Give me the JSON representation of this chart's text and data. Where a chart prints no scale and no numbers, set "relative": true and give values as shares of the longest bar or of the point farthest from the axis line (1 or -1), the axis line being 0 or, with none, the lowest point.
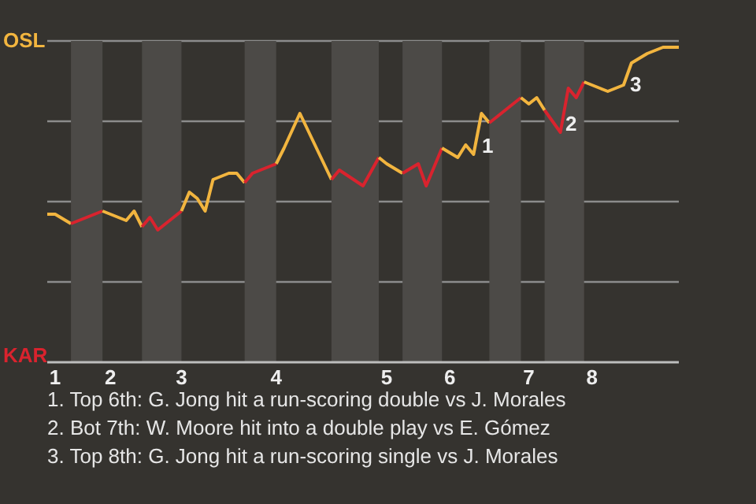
{
  "chart_data": {
    "type": "line",
    "relative": true,
    "grid": "y",
    "categories": [
      null,
      "1",
      null,
      null,
      null,
      null,
      null,
      null,
      "2",
      null,
      null,
      null,
      null,
      null,
      null,
      null,
      null,
      "3",
      null,
      null,
      null,
      null,
      null,
      null,
      null,
      null,
      null,
      null,
      null,
      "4",
      null,
      null,
      null,
      null,
      null,
      null,
      null,
      null,
      null,
      null,
      null,
      null,
      null,
      "5",
      null,
      null,
      null,
      null,
      null,
      null,
      null,
      "6",
      null,
      null,
      null,
      null,
      null,
      null,
      null,
      null,
      null,
      "7",
      null,
      null,
      null,
      null,
      null,
      null,
      null,
      "8",
      null,
      null,
      null,
      null,
      null,
      null,
      null,
      null,
      null,
      null,
      null
    ],
    "series": [
      {
        "color": "#f2b53f",
        "values": [
          0.47,
          0.47,
          null,
          0.44,
          null,
          null,
          null,
          null,
          null,
          null,
          null,
          null,
          null,
          null,
          null,
          null,
          null,
          null,
          null,
          null,
          null,
          null,
          null,
          null,
          null,
          null,
          null,
          null,
          null,
          null,
          null,
          null,
          null,
          null,
          null,
          null,
          null,
          null,
          null,
          null,
          null,
          null,
          null,
          null,
          null,
          null,
          null,
          null,
          null,
          null,
          null,
          null,
          null,
          null,
          null,
          null,
          null,
          null,
          null,
          null,
          null,
          null,
          null,
          null,
          null,
          null,
          null,
          null,
          null,
          null,
          null,
          null,
          null,
          null,
          null,
          null,
          null,
          null,
          null,
          null,
          null
        ]
      },
      {
        "color": "#d9232e",
        "values": [
          null,
          null,
          null,
          0.44,
          null,
          null,
          0.47,
          0.48,
          null,
          null,
          null,
          null,
          null,
          null,
          null,
          null,
          null,
          null,
          null,
          null,
          null,
          null,
          null,
          null,
          null,
          null,
          null,
          null,
          null,
          null,
          null,
          null,
          null,
          null,
          null,
          null,
          null,
          null,
          null,
          null,
          null,
          null,
          null,
          null,
          null,
          null,
          null,
          null,
          null,
          null,
          null,
          null,
          null,
          null,
          null,
          null,
          null,
          null,
          null,
          null,
          null,
          null,
          null,
          null,
          null,
          null,
          null,
          null,
          null,
          null,
          null,
          null,
          null,
          null,
          null,
          null,
          null,
          null,
          null,
          null,
          null
        ]
      },
      {
        "color": "#f2b53f",
        "values": [
          null,
          null,
          null,
          null,
          null,
          null,
          null,
          0.48,
          0.47,
          null,
          0.45,
          0.48,
          0.43,
          null,
          null,
          null,
          null,
          null,
          null,
          null,
          null,
          null,
          null,
          null,
          null,
          null,
          null,
          null,
          null,
          null,
          null,
          null,
          null,
          null,
          null,
          null,
          null,
          null,
          null,
          null,
          null,
          null,
          null,
          null,
          null,
          null,
          null,
          null,
          null,
          null,
          null,
          null,
          null,
          null,
          null,
          null,
          null,
          null,
          null,
          null,
          null,
          null,
          null,
          null,
          null,
          null,
          null,
          null,
          null,
          null,
          null,
          null,
          null,
          null,
          null,
          null,
          null,
          null,
          null,
          null,
          null
        ]
      },
      {
        "color": "#d9232e",
        "values": [
          null,
          null,
          null,
          null,
          null,
          null,
          null,
          null,
          null,
          null,
          null,
          null,
          0.43,
          0.46,
          0.42,
          null,
          null,
          0.48,
          null,
          null,
          null,
          null,
          null,
          null,
          null,
          null,
          null,
          null,
          null,
          null,
          null,
          null,
          null,
          null,
          null,
          null,
          null,
          null,
          null,
          null,
          null,
          null,
          null,
          null,
          null,
          null,
          null,
          null,
          null,
          null,
          null,
          null,
          null,
          null,
          null,
          null,
          null,
          null,
          null,
          null,
          null,
          null,
          null,
          null,
          null,
          null,
          null,
          null,
          null,
          null,
          null,
          null,
          null,
          null,
          null,
          null,
          null,
          null,
          null,
          null,
          null
        ]
      },
      {
        "color": "#f2b53f",
        "values": [
          null,
          null,
          null,
          null,
          null,
          null,
          null,
          null,
          null,
          null,
          null,
          null,
          null,
          null,
          null,
          null,
          null,
          0.48,
          0.54,
          0.52,
          0.48,
          0.58,
          null,
          0.6,
          0.6,
          0.57,
          null,
          null,
          null,
          null,
          null,
          null,
          null,
          null,
          null,
          null,
          null,
          null,
          null,
          null,
          null,
          null,
          null,
          null,
          null,
          null,
          null,
          null,
          null,
          null,
          null,
          null,
          null,
          null,
          null,
          null,
          null,
          null,
          null,
          null,
          null,
          null,
          null,
          null,
          null,
          null,
          null,
          null,
          null,
          null,
          null,
          null,
          null,
          null,
          null,
          null,
          null,
          null,
          null,
          null,
          null
        ]
      },
      {
        "color": "#d9232e",
        "values": [
          null,
          null,
          null,
          null,
          null,
          null,
          null,
          null,
          null,
          null,
          null,
          null,
          null,
          null,
          null,
          null,
          null,
          null,
          null,
          null,
          null,
          null,
          null,
          null,
          null,
          0.57,
          0.6,
          null,
          null,
          0.63,
          null,
          null,
          null,
          null,
          null,
          null,
          null,
          null,
          null,
          null,
          null,
          null,
          null,
          null,
          null,
          null,
          null,
          null,
          null,
          null,
          null,
          null,
          null,
          null,
          null,
          null,
          null,
          null,
          null,
          null,
          null,
          null,
          null,
          null,
          null,
          null,
          null,
          null,
          null,
          null,
          null,
          null,
          null,
          null,
          null,
          null,
          null,
          null,
          null,
          null,
          null
        ]
      },
      {
        "color": "#f2b53f",
        "values": [
          null,
          null,
          null,
          null,
          null,
          null,
          null,
          null,
          null,
          null,
          null,
          null,
          null,
          null,
          null,
          null,
          null,
          null,
          null,
          null,
          null,
          null,
          null,
          null,
          null,
          null,
          null,
          null,
          null,
          0.63,
          0.68,
          null,
          0.79,
          null,
          null,
          null,
          0.58,
          null,
          null,
          null,
          null,
          null,
          null,
          null,
          null,
          null,
          null,
          null,
          null,
          null,
          null,
          null,
          null,
          null,
          null,
          null,
          null,
          null,
          null,
          null,
          null,
          null,
          null,
          null,
          null,
          null,
          null,
          null,
          null,
          null,
          null,
          null,
          null,
          null,
          null,
          null,
          null,
          null,
          null,
          null,
          null
        ]
      },
      {
        "color": "#d9232e",
        "values": [
          null,
          null,
          null,
          null,
          null,
          null,
          null,
          null,
          null,
          null,
          null,
          null,
          null,
          null,
          null,
          null,
          null,
          null,
          null,
          null,
          null,
          null,
          null,
          null,
          null,
          null,
          null,
          null,
          null,
          null,
          null,
          null,
          null,
          null,
          null,
          null,
          0.58,
          0.61,
          null,
          null,
          0.56,
          null,
          0.65,
          null,
          null,
          null,
          null,
          null,
          null,
          null,
          null,
          null,
          null,
          null,
          null,
          null,
          null,
          null,
          null,
          null,
          null,
          null,
          null,
          null,
          null,
          null,
          null,
          null,
          null,
          null,
          null,
          null,
          null,
          null,
          null,
          null,
          null,
          null,
          null,
          null,
          null
        ]
      },
      {
        "color": "#f2b53f",
        "values": [
          null,
          null,
          null,
          null,
          null,
          null,
          null,
          null,
          null,
          null,
          null,
          null,
          null,
          null,
          null,
          null,
          null,
          null,
          null,
          null,
          null,
          null,
          null,
          null,
          null,
          null,
          null,
          null,
          null,
          null,
          null,
          null,
          null,
          null,
          null,
          null,
          null,
          null,
          null,
          null,
          null,
          null,
          0.65,
          0.63,
          null,
          0.6,
          null,
          null,
          null,
          null,
          null,
          null,
          null,
          null,
          null,
          null,
          null,
          null,
          null,
          null,
          null,
          null,
          null,
          null,
          null,
          null,
          null,
          null,
          null,
          null,
          null,
          null,
          null,
          null,
          null,
          null,
          null,
          null,
          null,
          null,
          null
        ]
      },
      {
        "color": "#d9232e",
        "values": [
          null,
          null,
          null,
          null,
          null,
          null,
          null,
          null,
          null,
          null,
          null,
          null,
          null,
          null,
          null,
          null,
          null,
          null,
          null,
          null,
          null,
          null,
          null,
          null,
          null,
          null,
          null,
          null,
          null,
          null,
          null,
          null,
          null,
          null,
          null,
          null,
          null,
          null,
          null,
          null,
          null,
          null,
          null,
          null,
          null,
          0.6,
          null,
          0.63,
          0.56,
          null,
          0.68,
          null,
          null,
          null,
          null,
          null,
          null,
          null,
          null,
          null,
          null,
          null,
          null,
          null,
          null,
          null,
          null,
          null,
          null,
          null,
          null,
          null,
          null,
          null,
          null,
          null,
          null,
          null,
          null,
          null,
          null
        ]
      },
      {
        "color": "#f2b53f",
        "values": [
          null,
          null,
          null,
          null,
          null,
          null,
          null,
          null,
          null,
          null,
          null,
          null,
          null,
          null,
          null,
          null,
          null,
          null,
          null,
          null,
          null,
          null,
          null,
          null,
          null,
          null,
          null,
          null,
          null,
          null,
          null,
          null,
          null,
          null,
          null,
          null,
          null,
          null,
          null,
          null,
          null,
          null,
          null,
          null,
          null,
          null,
          null,
          null,
          null,
          null,
          0.68,
          null,
          0.65,
          0.69,
          0.66,
          0.79,
          0.76,
          null,
          null,
          null,
          null,
          null,
          null,
          null,
          null,
          null,
          null,
          null,
          null,
          null,
          null,
          null,
          null,
          null,
          null,
          null,
          null,
          null,
          null,
          null,
          null
        ]
      },
      {
        "color": "#d9232e",
        "values": [
          null,
          null,
          null,
          null,
          null,
          null,
          null,
          null,
          null,
          null,
          null,
          null,
          null,
          null,
          null,
          null,
          null,
          null,
          null,
          null,
          null,
          null,
          null,
          null,
          null,
          null,
          null,
          null,
          null,
          null,
          null,
          null,
          null,
          null,
          null,
          null,
          null,
          null,
          null,
          null,
          null,
          null,
          null,
          null,
          null,
          null,
          null,
          null,
          null,
          null,
          null,
          null,
          null,
          null,
          null,
          null,
          0.76,
          null,
          0.8,
          null,
          0.84,
          null,
          null,
          null,
          null,
          null,
          null,
          null,
          null,
          null,
          null,
          null,
          null,
          null,
          null,
          null,
          null,
          null,
          null,
          null,
          null
        ]
      },
      {
        "color": "#f2b53f",
        "values": [
          null,
          null,
          null,
          null,
          null,
          null,
          null,
          null,
          null,
          null,
          null,
          null,
          null,
          null,
          null,
          null,
          null,
          null,
          null,
          null,
          null,
          null,
          null,
          null,
          null,
          null,
          null,
          null,
          null,
          null,
          null,
          null,
          null,
          null,
          null,
          null,
          null,
          null,
          null,
          null,
          null,
          null,
          null,
          null,
          null,
          null,
          null,
          null,
          null,
          null,
          null,
          null,
          null,
          null,
          null,
          null,
          null,
          null,
          null,
          null,
          0.84,
          0.82,
          0.84,
          0.8,
          null,
          null,
          null,
          null,
          null,
          null,
          null,
          null,
          null,
          null,
          null,
          null,
          null,
          null,
          null,
          null,
          null
        ]
      },
      {
        "color": "#d9232e",
        "values": [
          null,
          null,
          null,
          null,
          null,
          null,
          null,
          null,
          null,
          null,
          null,
          null,
          null,
          null,
          null,
          null,
          null,
          null,
          null,
          null,
          null,
          null,
          null,
          null,
          null,
          null,
          null,
          null,
          null,
          null,
          null,
          null,
          null,
          null,
          null,
          null,
          null,
          null,
          null,
          null,
          null,
          null,
          null,
          null,
          null,
          null,
          null,
          null,
          null,
          null,
          null,
          null,
          null,
          null,
          null,
          null,
          null,
          null,
          null,
          null,
          null,
          null,
          null,
          0.8,
          null,
          0.73,
          0.87,
          0.84,
          0.89,
          null,
          null,
          null,
          null,
          null,
          null,
          null,
          null,
          null,
          null,
          null,
          null
        ]
      },
      {
        "color": "#f2b53f",
        "values": [
          null,
          null,
          null,
          null,
          null,
          null,
          null,
          null,
          null,
          null,
          null,
          null,
          null,
          null,
          null,
          null,
          null,
          null,
          null,
          null,
          null,
          null,
          null,
          null,
          null,
          null,
          null,
          null,
          null,
          null,
          null,
          null,
          null,
          null,
          null,
          null,
          null,
          null,
          null,
          null,
          null,
          null,
          null,
          null,
          null,
          null,
          null,
          null,
          null,
          null,
          null,
          null,
          null,
          null,
          null,
          null,
          null,
          null,
          null,
          null,
          null,
          null,
          null,
          null,
          null,
          null,
          null,
          null,
          0.89,
          null,
          0.87,
          0.86,
          null,
          0.88,
          0.95,
          null,
          0.98,
          null,
          1,
          1,
          1
        ]
      }
    ],
    "annotations": [
      "OSL",
      "KAR",
      "1",
      "2",
      "3",
      "1. Top 6th: G. Jong hit a run-scoring double vs J. Morales",
      "2. Bot 7th: W. Moore hit into a double play vs E. Gómez",
      "3. Top 8th: G. Jong hit a run-scoring single vs J. Morales"
    ]
  }
}
